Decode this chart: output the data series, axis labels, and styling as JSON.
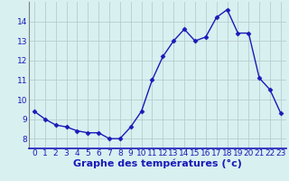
{
  "hours": [
    0,
    1,
    2,
    3,
    4,
    5,
    6,
    7,
    8,
    9,
    10,
    11,
    12,
    13,
    14,
    15,
    16,
    17,
    18,
    19,
    20,
    21,
    22,
    23
  ],
  "temperatures": [
    9.4,
    9.0,
    8.7,
    8.6,
    8.4,
    8.3,
    8.3,
    8.0,
    8.0,
    8.6,
    9.4,
    11.0,
    12.2,
    13.0,
    13.6,
    13.0,
    13.2,
    14.2,
    14.6,
    13.4,
    13.4,
    11.1,
    10.5,
    9.3
  ],
  "line_color": "#1a1ab8",
  "marker": "D",
  "marker_size": 2.5,
  "bg_color": "#d8f0f0",
  "grid_color": "#b8cece",
  "xlabel": "Graphe des températures (°c)",
  "xlabel_color": "#1a1ab8",
  "xlabel_fontsize": 8,
  "tick_color": "#1a1ab8",
  "tick_fontsize": 6.5,
  "ylim": [
    7.5,
    15.0
  ],
  "yticks": [
    8,
    9,
    10,
    11,
    12,
    13,
    14
  ],
  "xlim": [
    -0.5,
    23.5
  ],
  "xticks": [
    0,
    1,
    2,
    3,
    4,
    5,
    6,
    7,
    8,
    9,
    10,
    11,
    12,
    13,
    14,
    15,
    16,
    17,
    18,
    19,
    20,
    21,
    22,
    23
  ],
  "bottom_spine_color": "#1a1ab8",
  "left_spine_color": "#808080"
}
